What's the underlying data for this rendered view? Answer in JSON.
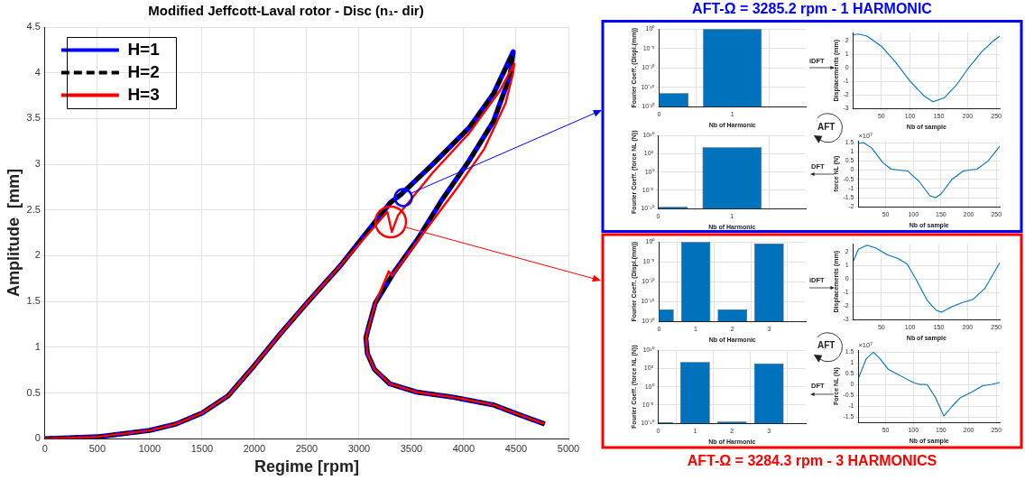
{
  "chart_data": [
    {
      "type": "line",
      "title": "Modified Jeffcott-Laval rotor - Disc (n₁- dir)",
      "xlabel": "Regime [rpm]",
      "ylabel": "Amplitude  [mm]",
      "xlim": [
        0,
        5000
      ],
      "xticks": [
        0,
        500,
        1000,
        1500,
        2000,
        2500,
        3000,
        3500,
        4000,
        4500,
        5000
      ],
      "ylim": [
        0,
        4.5
      ],
      "yticks": [
        0,
        0.5,
        1,
        1.5,
        2,
        2.5,
        3,
        3.5,
        4,
        4.5
      ],
      "grid": true,
      "legend": "top left",
      "series": [
        {
          "name": "H=1",
          "color": "#0000ff",
          "line_style": "solid",
          "x": [
            0,
            500,
            1000,
            1250,
            1500,
            1750,
            2000,
            2250,
            2500,
            2835,
            3298,
            3400,
            3704,
            4052,
            4284,
            4472,
            4443,
            4284,
            4052,
            3791,
            3559,
            3328,
            3154,
            3091,
            3065,
            3080,
            3146,
            3292,
            3548,
            3914,
            4280,
            4535,
            4773
          ],
          "values": [
            0,
            0.02,
            0.09,
            0.16,
            0.28,
            0.47,
            0.8,
            1.15,
            1.48,
            1.91,
            2.58,
            2.67,
            3.0,
            3.4,
            3.77,
            4.23,
            3.97,
            3.47,
            3.04,
            2.61,
            2.18,
            1.81,
            1.48,
            1.22,
            1.1,
            0.93,
            0.76,
            0.6,
            0.51,
            0.45,
            0.37,
            0.26,
            0.16
          ]
        },
        {
          "name": "H=2",
          "color": "#000000",
          "line_style": "dashed",
          "x": [
            0,
            500,
            1000,
            1250,
            1500,
            1750,
            2000,
            2250,
            2500,
            2835,
            3298,
            3400,
            3704,
            4052,
            4284,
            4465,
            4443,
            4284,
            4052,
            3791,
            3559,
            3328,
            3154,
            3091,
            3065,
            3080,
            3146,
            3292,
            3548,
            3914,
            4280,
            4535,
            4773
          ],
          "values": [
            0,
            0.02,
            0.09,
            0.16,
            0.28,
            0.47,
            0.8,
            1.15,
            1.48,
            1.91,
            2.58,
            2.67,
            3.0,
            3.4,
            3.77,
            4.2,
            3.97,
            3.47,
            3.04,
            2.61,
            2.18,
            1.81,
            1.48,
            1.22,
            1.1,
            0.93,
            0.76,
            0.6,
            0.51,
            0.45,
            0.37,
            0.26,
            0.16
          ]
        },
        {
          "name": "H=3",
          "color": "#ff0000",
          "line_style": "solid",
          "x": [
            0,
            500,
            1000,
            1250,
            1500,
            1750,
            2000,
            2250,
            2500,
            2835,
            3270,
            3313,
            3371,
            3704,
            4052,
            4342,
            4482,
            4472,
            4400,
            4197,
            3936,
            3675,
            3443,
            3313,
            3284,
            3154,
            3091,
            3065,
            3080,
            3146,
            3292,
            3548,
            3914,
            4280,
            4535,
            4773
          ],
          "values": [
            0,
            0.02,
            0.09,
            0.16,
            0.28,
            0.47,
            0.8,
            1.15,
            1.48,
            1.91,
            2.48,
            2.26,
            2.44,
            2.91,
            3.34,
            3.8,
            4.1,
            4.0,
            3.67,
            3.17,
            2.74,
            2.34,
            1.98,
            1.78,
            1.83,
            1.48,
            1.22,
            1.1,
            0.93,
            0.76,
            0.6,
            0.51,
            0.45,
            0.37,
            0.26,
            0.16
          ]
        }
      ]
    },
    {
      "type": "bar",
      "title": "AFT-Ω = 3285.2 rpm - 1 HARMONIC",
      "annotations": [
        "iDFT",
        "AFT",
        "DFT"
      ],
      "xlabel": "Nb of Harmonic",
      "ylabel": "Fourier Coeff. (Displ.(mm))",
      "x": [
        0,
        1
      ],
      "values": [
        3e-17,
        1
      ],
      "color": "#0072bd",
      "log": true,
      "xlim": [
        0,
        2
      ],
      "xticks": [
        0,
        1
      ],
      "ylim": [
        1e-20,
        1
      ],
      "yticks": [
        {
          "value": 1e-20,
          "label": "10⁻²⁰"
        },
        {
          "value": 1e-15,
          "label": "10⁻¹⁵"
        },
        {
          "value": 1e-10,
          "label": "10⁻¹⁰"
        },
        {
          "value": 1e-05,
          "label": "10⁻⁵"
        },
        {
          "value": 1,
          "label": "10⁰"
        }
      ],
      "grid": true
    },
    {
      "type": "line",
      "xlabel": "Nb of sample",
      "ylabel": "Displacements (mm)",
      "x": [
        1,
        10,
        25,
        50,
        75,
        100,
        125,
        140,
        160,
        180,
        200,
        225,
        245,
        256
      ],
      "values": [
        2.45,
        2.5,
        2.35,
        1.6,
        0.4,
        -1.0,
        -2.1,
        -2.5,
        -2.2,
        -1.3,
        -0.1,
        1.2,
        2.0,
        2.35
      ],
      "color": "#0072bd",
      "xlim": [
        1,
        256
      ],
      "xticks": [
        50,
        100,
        150,
        200,
        250
      ],
      "ylim": [
        -3,
        2.6
      ],
      "yticks": [
        -3,
        -2,
        -1,
        0,
        1,
        2
      ],
      "grid": true
    },
    {
      "type": "bar",
      "xlabel": "Nb of Harmonic",
      "ylabel": "Fourier Coeff. (force NL (N))",
      "x": [
        0,
        1
      ],
      "values": [
        3e-10,
        6000000.0
      ],
      "color": "#0072bd",
      "log": true,
      "xlim": [
        0,
        2
      ],
      "xticks": [
        0,
        1
      ],
      "ylim": [
        1e-10,
        10000000000.0
      ],
      "yticks": [
        {
          "value": 1e-10,
          "label": "10⁻¹⁰"
        },
        {
          "value": 1e-05,
          "label": "10⁻⁵"
        },
        {
          "value": 1,
          "label": "10⁰"
        },
        {
          "value": 100000.0,
          "label": "10⁵"
        },
        {
          "value": 10000000000.0,
          "label": "10¹⁰"
        }
      ],
      "grid": true
    },
    {
      "type": "line",
      "annotations": [
        "×10⁷"
      ],
      "xlabel": "Nb of sample",
      "ylabel": "force NL (N)",
      "x": [
        1,
        10,
        25,
        45,
        60,
        75,
        90,
        110,
        130,
        140,
        150,
        170,
        190,
        200,
        215,
        235,
        256
      ],
      "values": [
        1.45,
        1.5,
        1.2,
        0.4,
        0.05,
        0,
        -0.05,
        -0.6,
        -1.4,
        -1.5,
        -1.3,
        -0.5,
        -0.05,
        0,
        0.05,
        0.5,
        1.3
      ],
      "color": "#0072bd",
      "xlim": [
        1,
        256
      ],
      "xticks": [
        50,
        100,
        150,
        200,
        250
      ],
      "ylim": [
        -2,
        1.6
      ],
      "yticks": [
        -2,
        -1.5,
        -1,
        -0.5,
        0,
        0.5,
        1,
        1.5
      ],
      "grid": true
    },
    {
      "type": "bar",
      "title": "AFT-Ω = 3284.3 rpm - 3 HARMONICS",
      "annotations": [
        "iDFT",
        "AFT",
        "DFT"
      ],
      "xlabel": "Nb of Harmonic",
      "ylabel": "Fourier Coeff. (Displ.(mm))",
      "x": [
        0,
        1,
        2,
        3
      ],
      "values": [
        1e-17,
        1,
        1e-17,
        0.4
      ],
      "color": "#0072bd",
      "log": true,
      "xlim": [
        0,
        4
      ],
      "xticks": [
        0,
        1,
        2,
        3
      ],
      "ylim": [
        1e-20,
        1
      ],
      "yticks": [
        {
          "value": 1e-20,
          "label": "10⁻²⁰"
        },
        {
          "value": 1e-15,
          "label": "10⁻¹⁵"
        },
        {
          "value": 1e-10,
          "label": "10⁻¹⁰"
        },
        {
          "value": 1e-05,
          "label": "10⁻⁵"
        },
        {
          "value": 1,
          "label": "10⁰"
        }
      ],
      "grid": true
    },
    {
      "type": "line",
      "xlabel": "Nb of sample",
      "ylabel": "Displacements (mm)",
      "x": [
        1,
        10,
        25,
        40,
        60,
        80,
        95,
        110,
        130,
        145,
        155,
        170,
        190,
        210,
        230,
        256
      ],
      "values": [
        1.3,
        2.2,
        2.5,
        2.3,
        1.8,
        1.5,
        1.1,
        0,
        -1.6,
        -2.3,
        -2.45,
        -2.1,
        -1.75,
        -1.5,
        -0.7,
        1.2
      ],
      "color": "#0072bd",
      "xlim": [
        1,
        256
      ],
      "xticks": [
        50,
        100,
        150,
        200,
        250
      ],
      "ylim": [
        -3,
        2.6
      ],
      "yticks": [
        -3,
        -2,
        -1,
        0,
        1,
        2
      ],
      "grid": true
    },
    {
      "type": "bar",
      "xlabel": "Nb of Harmonic",
      "ylabel": "Fourier Coeff. (force NL (N))",
      "x": [
        0,
        1,
        2,
        3
      ],
      "values": [
        2e-10,
        6000000.0,
        3e-10,
        2500000.0
      ],
      "color": "#0072bd",
      "log": true,
      "xlim": [
        0,
        4
      ],
      "xticks": [
        0,
        1,
        2,
        3
      ],
      "ylim": [
        1e-10,
        10000000000.0
      ],
      "yticks": [
        {
          "value": 1e-10,
          "label": "10⁻¹⁰"
        },
        {
          "value": 1e-05,
          "label": "10⁻⁵"
        },
        {
          "value": 1,
          "label": "10⁰"
        },
        {
          "value": 100000.0,
          "label": "10⁵"
        },
        {
          "value": 10000000000.0,
          "label": "10¹⁰"
        }
      ],
      "grid": true
    },
    {
      "type": "line",
      "annotations": [
        "×10⁷"
      ],
      "xlabel": "Nb of sample",
      "ylabel": "Force NL (N)",
      "x": [
        1,
        15,
        28,
        40,
        55,
        70,
        85,
        100,
        110,
        125,
        140,
        155,
        170,
        185,
        205,
        225,
        240,
        256
      ],
      "values": [
        0.3,
        1.2,
        1.5,
        1.2,
        0.7,
        0.5,
        0.3,
        0.1,
        0.02,
        0,
        -0.6,
        -1.45,
        -1.0,
        -0.6,
        -0.35,
        -0.05,
        0,
        0.1
      ],
      "color": "#0072bd",
      "xlim": [
        1,
        256
      ],
      "xticks": [
        50,
        100,
        150,
        200,
        250
      ],
      "ylim": [
        -1.75,
        1.6
      ],
      "yticks": [
        -1.5,
        -1,
        -0.5,
        0,
        0.5,
        1,
        1.5
      ],
      "grid": true
    }
  ]
}
